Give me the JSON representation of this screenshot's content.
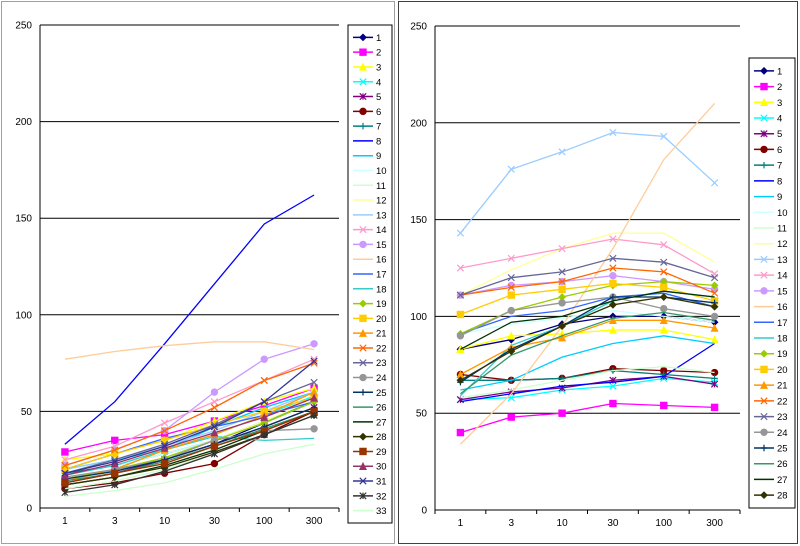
{
  "chart_data": [
    {
      "type": "line",
      "x": [
        "1",
        "3",
        "10",
        "30",
        "100",
        "300"
      ],
      "ylim": [
        0,
        250
      ],
      "yticks": [
        0,
        50,
        100,
        150,
        200,
        250
      ],
      "grid": true,
      "legend_position": "right",
      "series": [
        {
          "name": "1",
          "color": "#000080",
          "marker": "diamond",
          "values": [
            15,
            20,
            25,
            33,
            44,
            55
          ]
        },
        {
          "name": "2",
          "color": "#FF00FF",
          "marker": "square",
          "values": [
            29,
            35,
            38,
            45,
            53,
            62
          ]
        },
        {
          "name": "3",
          "color": "#FFFF00",
          "marker": "triangle",
          "values": [
            25,
            28,
            35,
            45,
            55,
            62
          ]
        },
        {
          "name": "4",
          "color": "#00FFFF",
          "marker": "x",
          "values": [
            20,
            25,
            30,
            38,
            48,
            58
          ]
        },
        {
          "name": "5",
          "color": "#800080",
          "marker": "star",
          "values": [
            13,
            18,
            25,
            33,
            42,
            52
          ]
        },
        {
          "name": "6",
          "color": "#800000",
          "marker": "circle",
          "values": [
            10,
            13,
            18,
            23,
            38,
            50
          ]
        },
        {
          "name": "7",
          "color": "#008080",
          "marker": "plus",
          "values": [
            18,
            22,
            28,
            35,
            45,
            55
          ]
        },
        {
          "name": "8",
          "color": "#0000FF",
          "marker": "none",
          "values": [
            33,
            55,
            85,
            116,
            147,
            162
          ]
        },
        {
          "name": "9",
          "color": "#00CCFF",
          "marker": "none",
          "values": [
            15,
            20,
            30,
            42,
            52,
            60
          ]
        },
        {
          "name": "10",
          "color": "#CCFFFF",
          "marker": "none",
          "values": [
            17,
            22,
            28,
            35,
            44,
            55
          ]
        },
        {
          "name": "11",
          "color": "#CCFFCC",
          "marker": "none",
          "values": [
            10,
            14,
            20,
            28,
            38,
            48
          ]
        },
        {
          "name": "12",
          "color": "#FFFF99",
          "marker": "none",
          "values": [
            15,
            20,
            26,
            35,
            45,
            56
          ]
        },
        {
          "name": "13",
          "color": "#99CCFF",
          "marker": "none",
          "values": [
            20,
            25,
            32,
            40,
            50,
            60
          ]
        },
        {
          "name": "14",
          "color": "#FF99CC",
          "marker": "x",
          "values": [
            25,
            32,
            44,
            55,
            66,
            77
          ]
        },
        {
          "name": "15",
          "color": "#CC99FF",
          "marker": "circle",
          "values": [
            22,
            30,
            40,
            60,
            77,
            85
          ]
        },
        {
          "name": "16",
          "color": "#FFCC99",
          "marker": "none",
          "values": [
            77,
            81,
            84,
            86,
            86,
            82
          ]
        },
        {
          "name": "17",
          "color": "#3366FF",
          "marker": "none",
          "values": [
            20,
            28,
            36,
            42,
            48,
            55
          ]
        },
        {
          "name": "18",
          "color": "#33CCCC",
          "marker": "none",
          "values": [
            17,
            22,
            30,
            37,
            35,
            36
          ]
        },
        {
          "name": "19",
          "color": "#99CC00",
          "marker": "diamond",
          "values": [
            15,
            20,
            26,
            35,
            44,
            55
          ]
        },
        {
          "name": "20",
          "color": "#FFCC00",
          "marker": "square",
          "values": [
            20,
            28,
            35,
            43,
            50,
            57
          ]
        },
        {
          "name": "21",
          "color": "#FF9900",
          "marker": "triangle",
          "values": [
            14,
            20,
            30,
            38,
            48,
            60
          ]
        },
        {
          "name": "22",
          "color": "#FF6600",
          "marker": "x",
          "values": [
            22,
            30,
            40,
            52,
            66,
            75
          ]
        },
        {
          "name": "23",
          "color": "#666699",
          "marker": "x",
          "values": [
            18,
            25,
            33,
            43,
            55,
            65
          ]
        },
        {
          "name": "24",
          "color": "#969696",
          "marker": "circle",
          "values": [
            16,
            20,
            25,
            35,
            40,
            41
          ]
        },
        {
          "name": "25",
          "color": "#003366",
          "marker": "plus",
          "values": [
            15,
            19,
            25,
            33,
            42,
            52
          ]
        },
        {
          "name": "26",
          "color": "#339966",
          "marker": "none",
          "values": [
            14,
            18,
            24,
            32,
            41,
            50
          ]
        },
        {
          "name": "27",
          "color": "#003300",
          "marker": "none",
          "values": [
            12,
            16,
            22,
            30,
            40,
            50
          ]
        },
        {
          "name": "28",
          "color": "#333300",
          "marker": "diamond",
          "values": [
            12,
            16,
            21,
            29,
            38,
            48
          ]
        },
        {
          "name": "29",
          "color": "#993300",
          "marker": "square",
          "values": [
            13,
            18,
            23,
            32,
            40,
            50
          ]
        },
        {
          "name": "30",
          "color": "#993366",
          "marker": "triangle",
          "values": [
            17,
            23,
            31,
            39,
            47,
            57
          ]
        },
        {
          "name": "31",
          "color": "#333399",
          "marker": "x",
          "values": [
            18,
            24,
            32,
            42,
            55,
            76
          ]
        },
        {
          "name": "32",
          "color": "#333333",
          "marker": "star",
          "values": [
            8,
            12,
            19,
            28,
            38,
            48
          ]
        },
        {
          "name": "33",
          "color": "#CCFFCC",
          "marker": "none",
          "values": [
            6,
            9,
            13,
            20,
            28,
            33
          ]
        }
      ]
    },
    {
      "type": "line",
      "x": [
        "1",
        "3",
        "10",
        "30",
        "100",
        "300"
      ],
      "ylim": [
        0,
        250
      ],
      "yticks": [
        0,
        50,
        100,
        150,
        200,
        250
      ],
      "grid": true,
      "legend_position": "right",
      "series": [
        {
          "name": "1",
          "color": "#000080",
          "marker": "diamond",
          "values": [
            83,
            88,
            96,
            100,
            100,
            97
          ]
        },
        {
          "name": "2",
          "color": "#FF00FF",
          "marker": "square",
          "values": [
            40,
            48,
            50,
            55,
            54,
            53
          ]
        },
        {
          "name": "3",
          "color": "#FFFF00",
          "marker": "triangle",
          "values": [
            83,
            90,
            91,
            93,
            93,
            88
          ]
        },
        {
          "name": "4",
          "color": "#00FFFF",
          "marker": "x",
          "values": [
            57,
            58,
            62,
            64,
            68,
            66
          ]
        },
        {
          "name": "5",
          "color": "#800080",
          "marker": "star",
          "values": [
            57,
            61,
            63,
            67,
            69,
            65
          ]
        },
        {
          "name": "6",
          "color": "#800000",
          "marker": "circle",
          "values": [
            70,
            67,
            68,
            73,
            72,
            71
          ]
        },
        {
          "name": "7",
          "color": "#008080",
          "marker": "plus",
          "values": [
            67,
            67,
            68,
            72,
            70,
            68
          ]
        },
        {
          "name": "8",
          "color": "#0000FF",
          "marker": "none",
          "values": [
            56,
            60,
            64,
            66,
            69,
            86
          ]
        },
        {
          "name": "9",
          "color": "#00CCFF",
          "marker": "none",
          "values": [
            62,
            67,
            79,
            86,
            90,
            86
          ]
        },
        {
          "name": "10",
          "color": "#CCFFFF",
          "marker": "none",
          "values": [
            91,
            96,
            99,
            103,
            100,
            97
          ]
        },
        {
          "name": "11",
          "color": "#CCFFCC",
          "marker": "none",
          "values": [
            58,
            62,
            67,
            72,
            74,
            71
          ]
        },
        {
          "name": "12",
          "color": "#FFFF99",
          "marker": "none",
          "values": [
            111,
            124,
            135,
            143,
            143,
            128
          ]
        },
        {
          "name": "13",
          "color": "#99CCFF",
          "marker": "x",
          "values": [
            143,
            176,
            185,
            195,
            193,
            169
          ]
        },
        {
          "name": "14",
          "color": "#FF99CC",
          "marker": "x",
          "values": [
            125,
            130,
            135,
            140,
            137,
            122
          ]
        },
        {
          "name": "15",
          "color": "#CC99FF",
          "marker": "circle",
          "values": [
            111,
            116,
            118,
            121,
            118,
            114
          ]
        },
        {
          "name": "16",
          "color": "#FFCC99",
          "marker": "none",
          "values": [
            34,
            60,
            95,
            135,
            181,
            210
          ]
        },
        {
          "name": "17",
          "color": "#3366FF",
          "marker": "none",
          "values": [
            91,
            100,
            103,
            110,
            112,
            105
          ]
        },
        {
          "name": "18",
          "color": "#33CCCC",
          "marker": "none",
          "values": [
            59,
            85,
            95,
            108,
            113,
            110
          ]
        },
        {
          "name": "19",
          "color": "#99CC00",
          "marker": "diamond",
          "values": [
            91,
            103,
            110,
            116,
            118,
            116
          ]
        },
        {
          "name": "20",
          "color": "#FFCC00",
          "marker": "square",
          "values": [
            101,
            111,
            114,
            117,
            115,
            108
          ]
        },
        {
          "name": "21",
          "color": "#FF9900",
          "marker": "triangle",
          "values": [
            70,
            84,
            89,
            98,
            98,
            94
          ]
        },
        {
          "name": "22",
          "color": "#FF6600",
          "marker": "x",
          "values": [
            111,
            115,
            118,
            125,
            123,
            112
          ]
        },
        {
          "name": "23",
          "color": "#666699",
          "marker": "x",
          "values": [
            111,
            120,
            123,
            130,
            128,
            120
          ]
        },
        {
          "name": "24",
          "color": "#969696",
          "marker": "circle",
          "values": [
            90,
            103,
            107,
            110,
            104,
            100
          ]
        },
        {
          "name": "25",
          "color": "#003366",
          "marker": "plus",
          "values": [
            66,
            83,
            95,
            110,
            110,
            107
          ]
        },
        {
          "name": "26",
          "color": "#339966",
          "marker": "none",
          "values": [
            60,
            80,
            90,
            99,
            102,
            98
          ]
        },
        {
          "name": "27",
          "color": "#003300",
          "marker": "none",
          "values": [
            83,
            97,
            100,
            108,
            113,
            110
          ]
        },
        {
          "name": "28",
          "color": "#333300",
          "marker": "diamond",
          "values": [
            67,
            82,
            95,
            106,
            110,
            105
          ]
        }
      ]
    }
  ]
}
